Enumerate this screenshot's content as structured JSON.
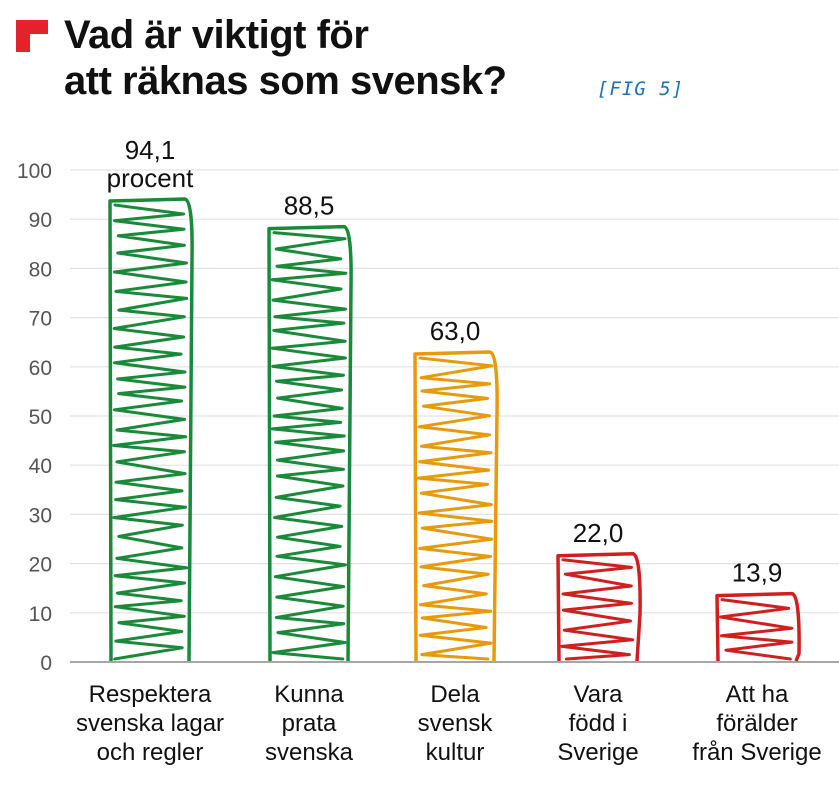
{
  "header": {
    "title_line1": "Vad är viktigt för",
    "title_line2": "att räknas som svensk?",
    "fig_tag": "[FIG 5]",
    "logo_icon": "red-corner-logo-icon",
    "logo_color": "#e3222b"
  },
  "chart_data": {
    "type": "bar",
    "categories": [
      "Respektera\nsvenska lagar\noch regler",
      "Kunna\nprata\nsvenska",
      "Dela\nsvensk\nkultur",
      "Vara\nfödd i\nSverige",
      "Att ha\nförälder\nfrån Sverige"
    ],
    "values": [
      94.1,
      88.5,
      63.0,
      22.0,
      13.9
    ],
    "value_labels": [
      "94,1\nprocent",
      "88,5",
      "63,0",
      "22,0",
      "13,9"
    ],
    "bar_colors": [
      "#1a8a3a",
      "#1a8a3a",
      "#e89a0c",
      "#cf1f1f",
      "#cf1f1f"
    ],
    "y_ticks": [
      "0",
      "10",
      "20",
      "30",
      "40",
      "50",
      "60",
      "70",
      "80",
      "90",
      "100"
    ],
    "ylim": [
      0,
      100
    ],
    "grid": true,
    "title": "",
    "xlabel": "",
    "ylabel": ""
  }
}
